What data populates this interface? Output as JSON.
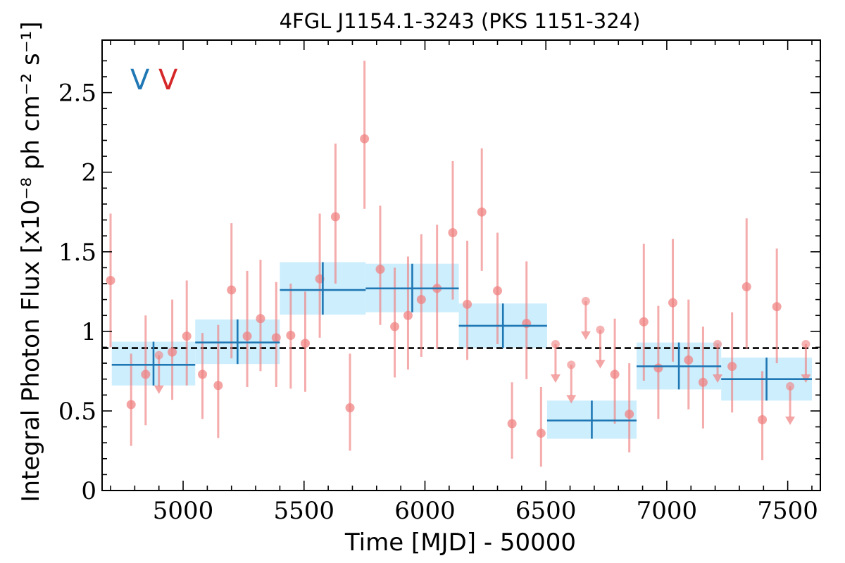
{
  "chart_data": {
    "type": "scatter",
    "title": "4FGL J1154.1-3243 (PKS 1151-324)",
    "xlabel": "Time [MJD] - 50000",
    "ylabel": "Integral Photon Flux [x10⁻⁸ ph cm⁻² s⁻¹]",
    "xlim": [
      4665,
      7635
    ],
    "ylim": [
      0,
      2.83
    ],
    "x_ticks": [
      5000,
      5500,
      6000,
      6500,
      7000,
      7500
    ],
    "x_tick_labels": [
      "5000",
      "5500",
      "6000",
      "6500",
      "7000",
      "7500"
    ],
    "y_ticks": [
      0,
      0.5,
      1,
      1.5,
      2,
      2.5
    ],
    "y_tick_labels": [
      "0",
      "0.5",
      "1",
      "1.5",
      "2",
      "2.5"
    ],
    "variability_flags": [
      {
        "text": "V",
        "color": "#1f77b4"
      },
      {
        "text": "V",
        "color": "#d62728"
      }
    ],
    "mean_flux": 0.895,
    "colors": {
      "monthly": "#f08080",
      "yearly": "#1f77b4",
      "band": "#cdeefd",
      "mean_line": "#000000"
    },
    "series": [
      {
        "kind": "monthly_detections",
        "points": [
          {
            "x": 4700,
            "y": 1.32,
            "lo": 0.9,
            "hi": 1.74
          },
          {
            "x": 4785,
            "y": 0.54,
            "lo": 0.28,
            "hi": 0.86
          },
          {
            "x": 4845,
            "y": 0.73,
            "lo": 0.41,
            "hi": 1.1
          },
          {
            "x": 4955,
            "y": 0.87,
            "lo": 0.57,
            "hi": 1.2
          },
          {
            "x": 5015,
            "y": 0.97,
            "lo": 0.66,
            "hi": 1.32
          },
          {
            "x": 5080,
            "y": 0.73,
            "lo": 0.45,
            "hi": 0.99
          },
          {
            "x": 5145,
            "y": 0.66,
            "lo": 0.33,
            "hi": 1.04
          },
          {
            "x": 5200,
            "y": 1.26,
            "lo": 0.83,
            "hi": 1.68
          },
          {
            "x": 5265,
            "y": 0.97,
            "lo": 0.65,
            "hi": 1.38
          },
          {
            "x": 5320,
            "y": 1.08,
            "lo": 0.75,
            "hi": 1.45
          },
          {
            "x": 5385,
            "y": 0.96,
            "lo": 0.65,
            "hi": 1.31
          },
          {
            "x": 5445,
            "y": 0.975,
            "lo": 0.64,
            "hi": 1.3
          },
          {
            "x": 5505,
            "y": 0.925,
            "lo": 0.62,
            "hi": 1.25
          },
          {
            "x": 5565,
            "y": 1.33,
            "lo": 0.96,
            "hi": 1.74
          },
          {
            "x": 5630,
            "y": 1.72,
            "lo": 1.3,
            "hi": 2.18
          },
          {
            "x": 5690,
            "y": 0.52,
            "lo": 0.25,
            "hi": 0.86
          },
          {
            "x": 5750,
            "y": 2.21,
            "lo": 1.77,
            "hi": 2.7
          },
          {
            "x": 5815,
            "y": 1.39,
            "lo": 1.04,
            "hi": 1.79
          },
          {
            "x": 5875,
            "y": 1.03,
            "lo": 0.71,
            "hi": 1.4
          },
          {
            "x": 5930,
            "y": 1.1,
            "lo": 0.76,
            "hi": 1.47
          },
          {
            "x": 5985,
            "y": 1.2,
            "lo": 0.84,
            "hi": 1.61
          },
          {
            "x": 6050,
            "y": 1.27,
            "lo": 0.89,
            "hi": 1.67
          },
          {
            "x": 6115,
            "y": 1.62,
            "lo": 1.2,
            "hi": 2.07
          },
          {
            "x": 6175,
            "y": 1.17,
            "lo": 0.82,
            "hi": 1.57
          },
          {
            "x": 6235,
            "y": 1.75,
            "lo": 1.38,
            "hi": 2.15
          },
          {
            "x": 6300,
            "y": 1.255,
            "lo": 0.92,
            "hi": 1.62
          },
          {
            "x": 6360,
            "y": 0.42,
            "lo": 0.2,
            "hi": 0.68
          },
          {
            "x": 6420,
            "y": 1.05,
            "lo": 0.7,
            "hi": 1.44
          },
          {
            "x": 6480,
            "y": 0.36,
            "lo": 0.15,
            "hi": 0.65
          },
          {
            "x": 6785,
            "y": 0.73,
            "lo": 0.42,
            "hi": 1.08
          },
          {
            "x": 6845,
            "y": 0.48,
            "lo": 0.24,
            "hi": 0.8
          },
          {
            "x": 6905,
            "y": 1.06,
            "lo": 0.69,
            "hi": 1.55
          },
          {
            "x": 6965,
            "y": 0.77,
            "lo": 0.45,
            "hi": 1.16
          },
          {
            "x": 7025,
            "y": 1.18,
            "lo": 0.81,
            "hi": 1.58
          },
          {
            "x": 7090,
            "y": 0.82,
            "lo": 0.51,
            "hi": 1.2
          },
          {
            "x": 7150,
            "y": 0.68,
            "lo": 0.39,
            "hi": 1.03
          },
          {
            "x": 7270,
            "y": 0.78,
            "lo": 0.49,
            "hi": 1.12
          },
          {
            "x": 7330,
            "y": 1.28,
            "lo": 0.89,
            "hi": 1.71
          },
          {
            "x": 7395,
            "y": 0.445,
            "lo": 0.19,
            "hi": 0.75
          },
          {
            "x": 7455,
            "y": 1.155,
            "lo": 0.8,
            "hi": 1.52
          }
        ]
      },
      {
        "kind": "monthly_upper_limits",
        "points": [
          {
            "x": 4900,
            "y": 0.85,
            "arrow_to": 0.62
          },
          {
            "x": 6540,
            "y": 0.92,
            "arrow_to": 0.69
          },
          {
            "x": 6605,
            "y": 0.79,
            "arrow_to": 0.56
          },
          {
            "x": 6665,
            "y": 1.19,
            "arrow_to": 0.96
          },
          {
            "x": 6725,
            "y": 1.01,
            "arrow_to": 0.78
          },
          {
            "x": 7210,
            "y": 0.92,
            "arrow_to": 0.69
          },
          {
            "x": 7510,
            "y": 0.655,
            "arrow_to": 0.425
          },
          {
            "x": 7575,
            "y": 0.92,
            "arrow_to": 0.69
          }
        ]
      },
      {
        "kind": "yearly_bins",
        "bins": [
          {
            "x0": 4705,
            "x1": 5050,
            "y": 0.79,
            "lo": 0.66,
            "hi": 0.935
          },
          {
            "x0": 5050,
            "x1": 5400,
            "y": 0.93,
            "lo": 0.795,
            "hi": 1.075
          },
          {
            "x0": 5400,
            "x1": 5755,
            "y": 1.26,
            "lo": 1.105,
            "hi": 1.435
          },
          {
            "x0": 5755,
            "x1": 6140,
            "y": 1.27,
            "lo": 1.12,
            "hi": 1.425
          },
          {
            "x0": 6140,
            "x1": 6505,
            "y": 1.035,
            "lo": 0.895,
            "hi": 1.175
          },
          {
            "x0": 6505,
            "x1": 6875,
            "y": 0.44,
            "lo": 0.325,
            "hi": 0.565
          },
          {
            "x0": 6875,
            "x1": 7225,
            "y": 0.78,
            "lo": 0.635,
            "hi": 0.93
          },
          {
            "x0": 7225,
            "x1": 7600,
            "y": 0.7,
            "lo": 0.565,
            "hi": 0.835
          }
        ]
      }
    ]
  }
}
